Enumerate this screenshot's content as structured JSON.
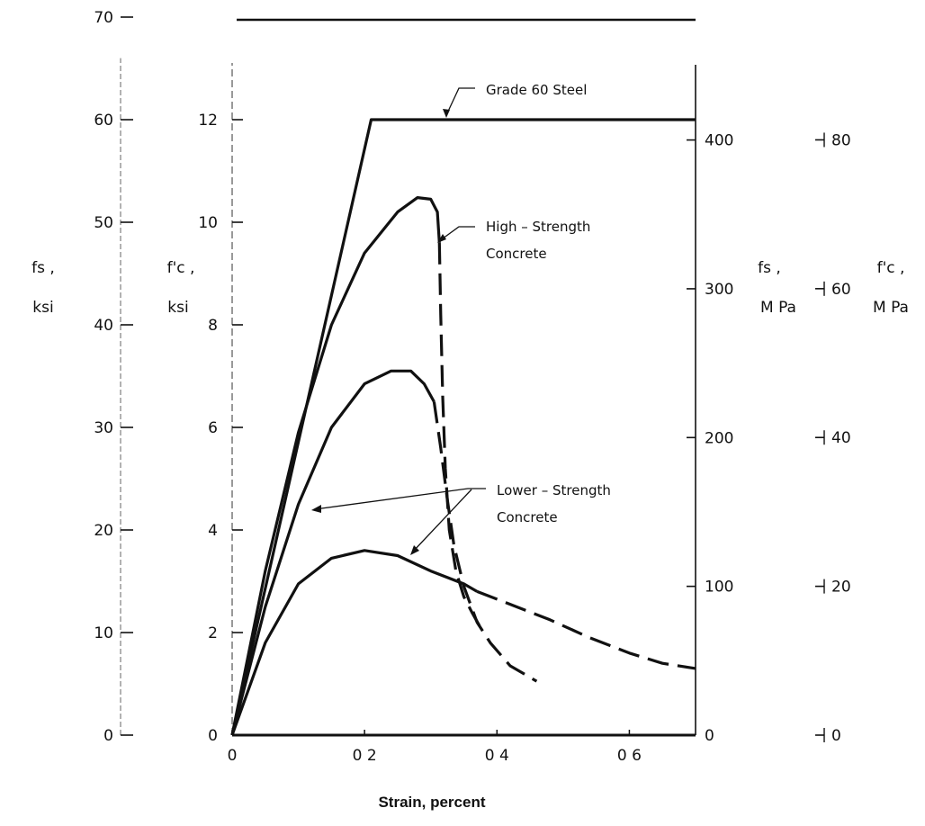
{
  "chart_data": {
    "type": "line",
    "xlabel": "Strain,    percent",
    "xlim": [
      0,
      0.7
    ],
    "x_ticks": [
      {
        "v": 0,
        "label": "0"
      },
      {
        "v": 0.2,
        "label": "0 2"
      },
      {
        "v": 0.4,
        "label": "0 4"
      },
      {
        "v": 0.6,
        "label": "0 6"
      }
    ],
    "axes": {
      "fs_ksi": {
        "label_line1": "fs ,",
        "label_line2": "ksi",
        "range": [
          0,
          70
        ],
        "ticks": [
          {
            "v": 0,
            "label": "0"
          },
          {
            "v": 10,
            "label": "10"
          },
          {
            "v": 20,
            "label": "20"
          },
          {
            "v": 30,
            "label": "30"
          },
          {
            "v": 40,
            "label": "40"
          },
          {
            "v": 50,
            "label": "50"
          },
          {
            "v": 60,
            "label": "60"
          },
          {
            "v": 70,
            "label": "70"
          }
        ]
      },
      "fc_ksi": {
        "label_line1": "f'c ,",
        "label_line2": "ksi",
        "range": [
          0,
          14
        ],
        "ticks": [
          {
            "v": 0,
            "label": "0"
          },
          {
            "v": 2,
            "label": "2"
          },
          {
            "v": 4,
            "label": "4"
          },
          {
            "v": 6,
            "label": "6"
          },
          {
            "v": 8,
            "label": "8"
          },
          {
            "v": 10,
            "label": "10"
          },
          {
            "v": 12,
            "label": "12"
          }
        ]
      },
      "fs_mpa": {
        "label_line1": "fs ,",
        "label_line2": "M Pa",
        "range": [
          0,
          482.6
        ],
        "ticks": [
          {
            "v": 0,
            "label": "0"
          },
          {
            "v": 100,
            "label": "100"
          },
          {
            "v": 200,
            "label": "200"
          },
          {
            "v": 300,
            "label": "300"
          },
          {
            "v": 400,
            "label": "400"
          }
        ]
      },
      "fc_mpa": {
        "label_line1": "f'c ,",
        "label_line2": "M Pa",
        "range": [
          0,
          96.5
        ],
        "ticks": [
          {
            "v": 0,
            "label": "0"
          },
          {
            "v": 20,
            "label": "20"
          },
          {
            "v": 40,
            "label": "40"
          },
          {
            "v": 60,
            "label": "60"
          },
          {
            "v": 80,
            "label": "80"
          }
        ]
      }
    },
    "series": [
      {
        "kind": "steel",
        "unit_axis": "fc_ksi",
        "solid": [
          [
            0,
            0
          ],
          [
            0.21,
            12.0
          ],
          [
            0.7,
            12.0
          ]
        ]
      },
      {
        "kind": "concrete-high",
        "unit_axis": "fc_ksi",
        "solid": [
          [
            0,
            0
          ],
          [
            0.05,
            3.2
          ],
          [
            0.1,
            5.9
          ],
          [
            0.15,
            8.0
          ],
          [
            0.2,
            9.4
          ],
          [
            0.25,
            10.2
          ],
          [
            0.28,
            10.48
          ],
          [
            0.3,
            10.45
          ],
          [
            0.31,
            10.2
          ],
          [
            0.313,
            9.6
          ]
        ],
        "dashed": [
          [
            0.313,
            9.6
          ],
          [
            0.315,
            8.2
          ],
          [
            0.318,
            6.6
          ],
          [
            0.322,
            5.2
          ],
          [
            0.328,
            4.0
          ],
          [
            0.338,
            3.2
          ],
          [
            0.35,
            2.7
          ],
          [
            0.362,
            2.4
          ],
          [
            0.375,
            2.1
          ]
        ]
      },
      {
        "kind": "concrete-lower-1",
        "unit_axis": "fc_ksi",
        "solid": [
          [
            0,
            0
          ],
          [
            0.05,
            2.5
          ],
          [
            0.1,
            4.5
          ],
          [
            0.15,
            6.0
          ],
          [
            0.2,
            6.85
          ],
          [
            0.24,
            7.1
          ],
          [
            0.27,
            7.1
          ],
          [
            0.29,
            6.85
          ],
          [
            0.305,
            6.5
          ]
        ],
        "dashed": [
          [
            0.305,
            6.5
          ],
          [
            0.315,
            5.6
          ],
          [
            0.325,
            4.6
          ],
          [
            0.335,
            3.7
          ],
          [
            0.35,
            2.9
          ],
          [
            0.37,
            2.2
          ],
          [
            0.39,
            1.8
          ],
          [
            0.42,
            1.35
          ],
          [
            0.46,
            1.05
          ]
        ]
      },
      {
        "kind": "concrete-lower-2",
        "unit_axis": "fc_ksi",
        "solid": [
          [
            0,
            0
          ],
          [
            0.05,
            1.8
          ],
          [
            0.1,
            2.95
          ],
          [
            0.15,
            3.45
          ],
          [
            0.2,
            3.6
          ],
          [
            0.25,
            3.5
          ],
          [
            0.3,
            3.2
          ],
          [
            0.35,
            2.95
          ],
          [
            0.37,
            2.8
          ]
        ],
        "dashed": [
          [
            0.37,
            2.8
          ],
          [
            0.42,
            2.55
          ],
          [
            0.48,
            2.25
          ],
          [
            0.54,
            1.9
          ],
          [
            0.6,
            1.6
          ],
          [
            0.65,
            1.4
          ],
          [
            0.7,
            1.3
          ]
        ]
      }
    ],
    "annotations": [
      {
        "text": "Grade   60   Steel",
        "points_to": "steel"
      },
      {
        "text": "High – Strength",
        "text2": "Concrete",
        "points_to": "concrete-high"
      },
      {
        "text": "Lower – Strength",
        "text2": "Concrete",
        "points_to": [
          "concrete-lower-1",
          "concrete-lower-2"
        ]
      }
    ]
  }
}
